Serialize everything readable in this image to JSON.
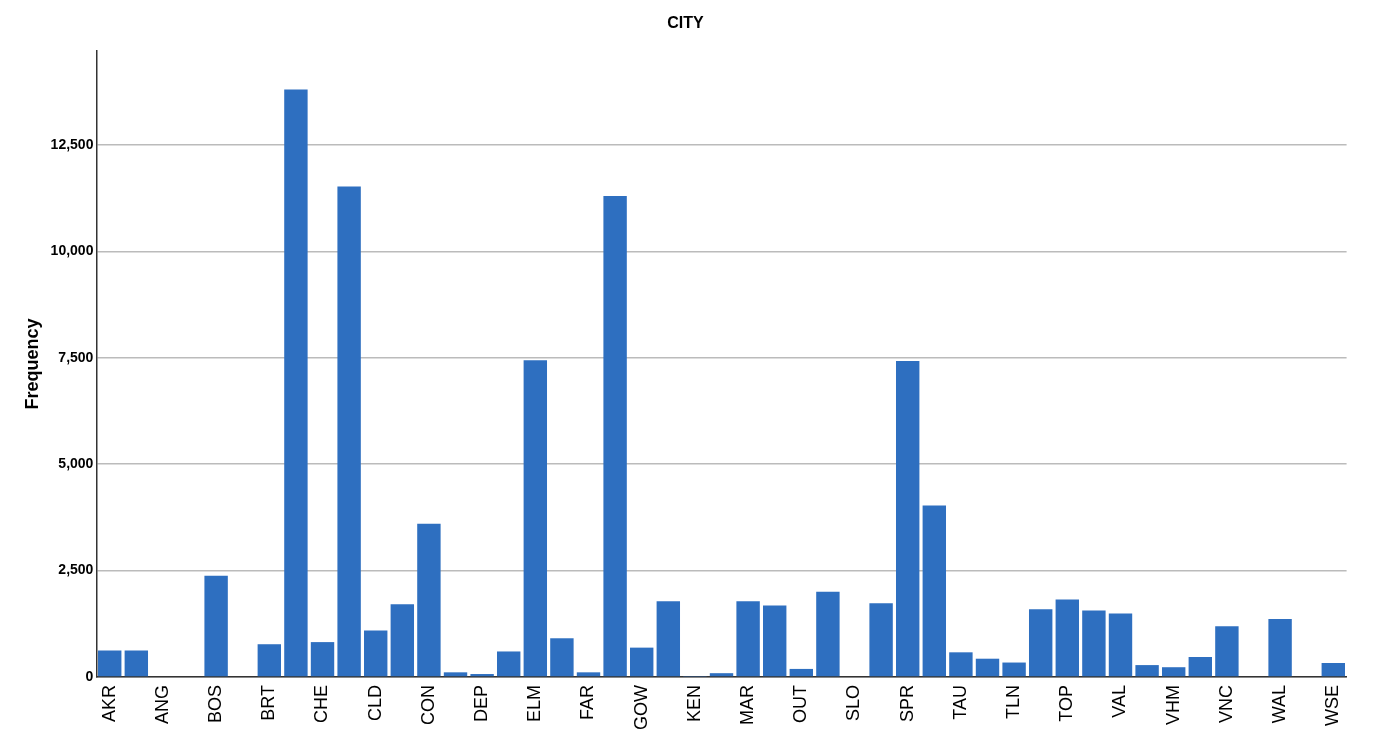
{
  "chart_data": {
    "type": "bar",
    "title": "CITY",
    "ylabel": "Frequency",
    "categories": [
      "AKR",
      null,
      "ANG",
      null,
      "BOS",
      null,
      "BRT",
      null,
      "CHE",
      null,
      "CLD",
      null,
      "CON",
      null,
      "DEP",
      null,
      "ELM",
      null,
      "FAR",
      null,
      "GOW",
      null,
      "KEN",
      null,
      "MAR",
      null,
      "OUT",
      null,
      "SLO",
      null,
      "SPR",
      null,
      "TAU",
      null,
      "TLN",
      null,
      "TOP",
      null,
      "VAL",
      null,
      "VHM",
      null,
      "VNC",
      null,
      "WAL",
      null,
      "WSE"
    ],
    "values": [
      620,
      620,
      0,
      20,
      2380,
      20,
      770,
      13800,
      820,
      11520,
      1090,
      1710,
      3600,
      110,
      70,
      600,
      7440,
      910,
      110,
      11300,
      690,
      1780,
      10,
      90,
      1780,
      1680,
      190,
      2000,
      0,
      1730,
      7420,
      4030,
      580,
      430,
      340,
      1590,
      1820,
      1560,
      1490,
      280,
      230,
      470,
      1190,
      0,
      1360,
      0,
      330
    ],
    "color": "#2e6fc0",
    "ylim": [
      0,
      14700
    ],
    "yticks": [
      {
        "value": 0,
        "label": "0"
      },
      {
        "value": 2500,
        "label": "2,500"
      },
      {
        "value": 5000,
        "label": "5,000"
      },
      {
        "value": 7500,
        "label": "7,500"
      },
      {
        "value": 10000,
        "label": "10,000"
      },
      {
        "value": 12500,
        "label": "12,500"
      }
    ],
    "grid": "y"
  }
}
